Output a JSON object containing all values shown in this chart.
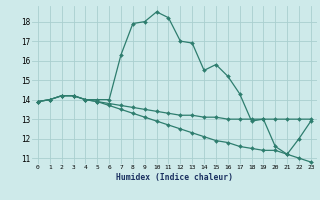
{
  "xlabel": "Humidex (Indice chaleur)",
  "background_color": "#ceeaea",
  "grid_color": "#aacfcf",
  "line_color": "#2e7d6e",
  "xlim": [
    -0.5,
    23.5
  ],
  "ylim": [
    10.7,
    18.8
  ],
  "yticks": [
    11,
    12,
    13,
    14,
    15,
    16,
    17,
    18
  ],
  "xticks": [
    0,
    1,
    2,
    3,
    4,
    5,
    6,
    7,
    8,
    9,
    10,
    11,
    12,
    13,
    14,
    15,
    16,
    17,
    18,
    19,
    20,
    21,
    22,
    23
  ],
  "line1_x": [
    0,
    1,
    2,
    3,
    4,
    5,
    6,
    7,
    8,
    9,
    10,
    11,
    12,
    13,
    14,
    15,
    16,
    17,
    18,
    19,
    20,
    21,
    22,
    23
  ],
  "line1_y": [
    13.9,
    14.0,
    14.2,
    14.2,
    14.0,
    14.0,
    14.0,
    16.3,
    17.9,
    18.0,
    18.5,
    18.2,
    17.0,
    16.9,
    15.5,
    15.8,
    15.2,
    14.3,
    12.9,
    13.0,
    11.6,
    11.2,
    12.0,
    12.9
  ],
  "line2_x": [
    0,
    1,
    2,
    3,
    4,
    5,
    6,
    7,
    8,
    9,
    10,
    11,
    12,
    13,
    14,
    15,
    16,
    17,
    18,
    19,
    20,
    21,
    22,
    23
  ],
  "line2_y": [
    13.9,
    14.0,
    14.2,
    14.2,
    14.0,
    13.9,
    13.8,
    13.7,
    13.6,
    13.5,
    13.4,
    13.3,
    13.2,
    13.2,
    13.1,
    13.1,
    13.0,
    13.0,
    13.0,
    13.0,
    13.0,
    13.0,
    13.0,
    13.0
  ],
  "line3_x": [
    0,
    1,
    2,
    3,
    4,
    5,
    6,
    7,
    8,
    9,
    10,
    11,
    12,
    13,
    14,
    15,
    16,
    17,
    18,
    19,
    20,
    21,
    22,
    23
  ],
  "line3_y": [
    13.9,
    14.0,
    14.2,
    14.2,
    14.0,
    13.9,
    13.7,
    13.5,
    13.3,
    13.1,
    12.9,
    12.7,
    12.5,
    12.3,
    12.1,
    11.9,
    11.8,
    11.6,
    11.5,
    11.4,
    11.4,
    11.2,
    11.0,
    10.8
  ]
}
